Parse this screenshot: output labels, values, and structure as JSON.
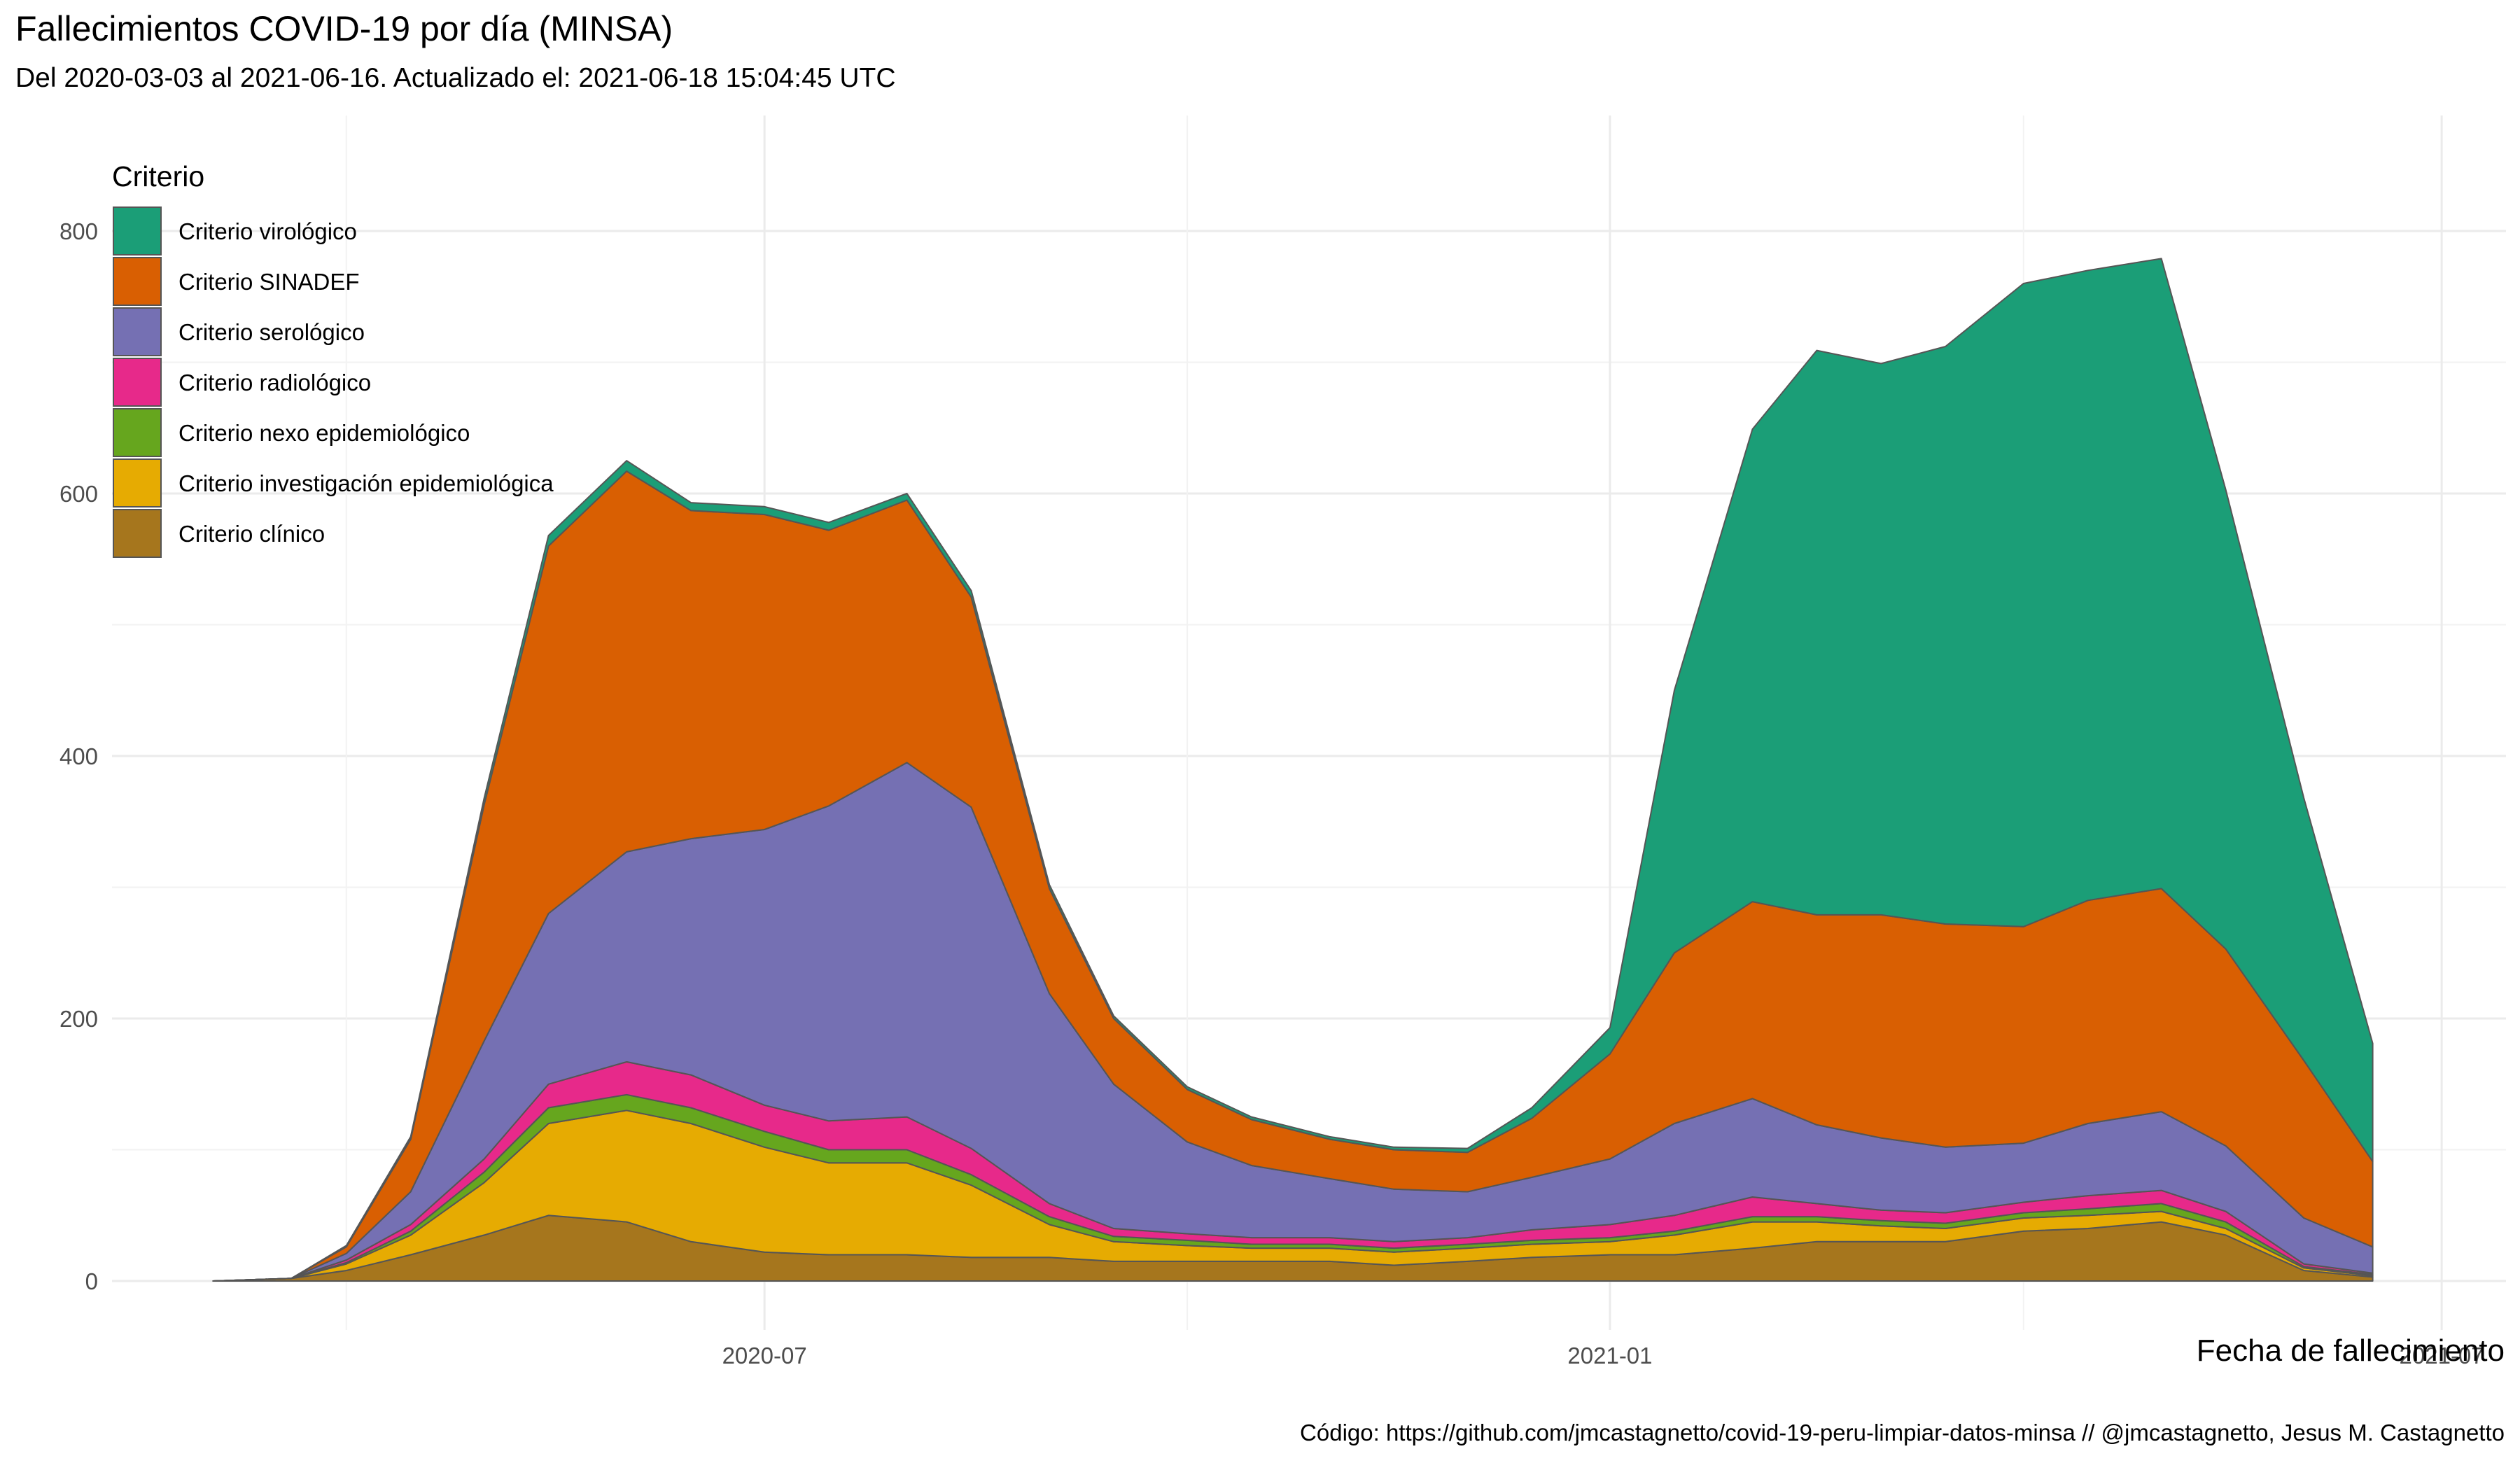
{
  "chart_data": {
    "type": "area",
    "stacked": true,
    "title": "Fallecimientos COVID-19 por día (MINSA)",
    "subtitle": "Del 2020-03-03 al 2021-06-16. Actualizado el: 2021-06-18 15:04:45 UTC",
    "xlabel": "Fecha de fallecimiento",
    "ylabel": "",
    "caption": "Código: https://github.com/jmcastagnetto/covid-19-peru-limpiar-datos-minsa // @jmcastagnetto, Jesus M. Castagnetto",
    "x_range": [
      "2020-03-03",
      "2021-06-16"
    ],
    "ylim": [
      0,
      850
    ],
    "y_ticks": [
      0,
      200,
      400,
      600,
      800
    ],
    "x_ticks": [
      {
        "date": "2020-07-01",
        "label": "2020-07"
      },
      {
        "date": "2021-01-01",
        "label": "2021-01"
      },
      {
        "date": "2021-07-01",
        "label": "2021-07"
      }
    ],
    "grid": true,
    "legend": {
      "title": "Criterio",
      "placement": "top-left"
    },
    "sample_dates": [
      "2020-03-03",
      "2020-03-20",
      "2020-04-01",
      "2020-04-15",
      "2020-05-01",
      "2020-05-15",
      "2020-06-01",
      "2020-06-15",
      "2020-07-01",
      "2020-07-15",
      "2020-08-01",
      "2020-08-15",
      "2020-09-01",
      "2020-09-15",
      "2020-10-01",
      "2020-10-15",
      "2020-11-01",
      "2020-11-15",
      "2020-12-01",
      "2020-12-15",
      "2021-01-01",
      "2021-01-15",
      "2021-02-01",
      "2021-02-15",
      "2021-03-01",
      "2021-03-15",
      "2021-04-01",
      "2021-04-15",
      "2021-05-01",
      "2021-05-15",
      "2021-06-01",
      "2021-06-16"
    ],
    "series": [
      {
        "name": "Criterio clínico",
        "color": "#A6761D",
        "values": [
          0,
          2,
          8,
          20,
          35,
          50,
          45,
          30,
          22,
          20,
          20,
          18,
          18,
          15,
          15,
          15,
          15,
          12,
          15,
          18,
          20,
          20,
          25,
          30,
          30,
          30,
          38,
          40,
          45,
          35,
          8,
          3
        ]
      },
      {
        "name": "Criterio investigación epidemiológica",
        "color": "#E6AB02",
        "values": [
          0,
          0,
          5,
          15,
          40,
          70,
          85,
          90,
          80,
          70,
          70,
          55,
          25,
          15,
          12,
          10,
          10,
          10,
          10,
          10,
          10,
          15,
          20,
          15,
          12,
          10,
          10,
          10,
          8,
          5,
          2,
          1
        ]
      },
      {
        "name": "Criterio nexo epidemiológico",
        "color": "#66A61E",
        "values": [
          0,
          0,
          1,
          3,
          8,
          12,
          12,
          12,
          12,
          10,
          10,
          8,
          6,
          4,
          4,
          3,
          3,
          3,
          3,
          3,
          3,
          3,
          4,
          4,
          4,
          4,
          4,
          5,
          6,
          5,
          1,
          1
        ]
      },
      {
        "name": "Criterio radiológico",
        "color": "#E7298A",
        "values": [
          0,
          0,
          2,
          5,
          10,
          18,
          25,
          25,
          20,
          22,
          25,
          20,
          10,
          6,
          5,
          5,
          5,
          5,
          5,
          8,
          10,
          12,
          15,
          10,
          8,
          8,
          8,
          10,
          10,
          8,
          2,
          1
        ]
      },
      {
        "name": "Criterio serológico",
        "color": "#7570B3",
        "values": [
          0,
          0,
          5,
          25,
          90,
          130,
          160,
          180,
          210,
          240,
          270,
          260,
          160,
          110,
          70,
          55,
          45,
          40,
          35,
          40,
          50,
          70,
          75,
          60,
          55,
          50,
          45,
          55,
          60,
          50,
          35,
          20
        ]
      },
      {
        "name": "Criterio SINADEF",
        "color": "#D95F02",
        "values": [
          0,
          0,
          5,
          40,
          180,
          280,
          290,
          250,
          240,
          210,
          200,
          160,
          80,
          50,
          40,
          35,
          30,
          30,
          30,
          45,
          80,
          130,
          150,
          160,
          170,
          170,
          165,
          170,
          170,
          150,
          120,
          65
        ]
      },
      {
        "name": "Criterio virológico",
        "color": "#1B9E77",
        "values": [
          0,
          0,
          1,
          2,
          5,
          8,
          8,
          6,
          6,
          6,
          5,
          5,
          3,
          2,
          2,
          2,
          2,
          2,
          3,
          8,
          20,
          200,
          360,
          430,
          420,
          440,
          490,
          480,
          480,
          350,
          200,
          90
        ]
      }
    ]
  }
}
